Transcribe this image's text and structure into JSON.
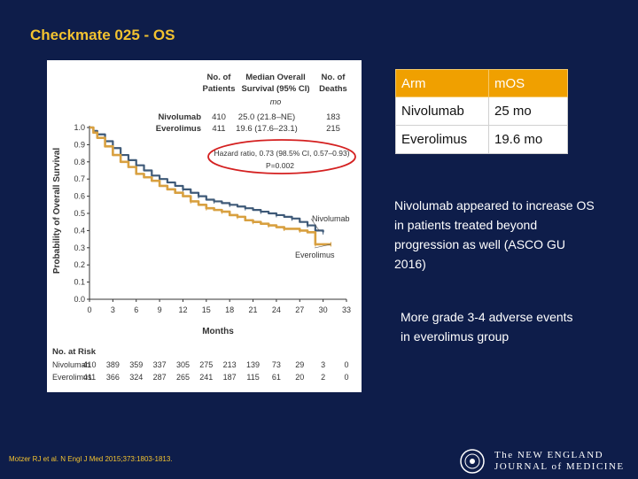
{
  "slide": {
    "title": "Checkmate 025 - OS",
    "citation": "Motzer RJ et al. N Engl J Med 2015;373:1803-1813.",
    "logo_text_line1": "The NEW ENGLAND",
    "logo_text_line2": "JOURNAL of MEDICINE"
  },
  "table": {
    "headers": [
      "Arm",
      "mOS"
    ],
    "rows": [
      [
        "Nivolumab",
        "25 mo"
      ],
      [
        "Everolimus",
        "19.6 mo"
      ]
    ]
  },
  "notes": [
    "Nivolumab appeared to increase OS in patients treated beyond progression as well (ASCO GU 2016)",
    "More grade 3-4 adverse events in everolimus group"
  ],
  "colors": {
    "background": "#0e1d4a",
    "title": "#f2c230",
    "table_header": "#f0a000",
    "nivolumab": "#3f5a78",
    "everolimus": "#d8a040",
    "hr_circle": "#d42020"
  },
  "chart_data": {
    "type": "line",
    "title": "",
    "xlabel": "Months",
    "ylabel": "Probability of Overall Survival",
    "xlim": [
      0,
      33
    ],
    "ylim": [
      0,
      1.0
    ],
    "x_ticks": [
      0,
      3,
      6,
      9,
      12,
      15,
      18,
      21,
      24,
      27,
      30,
      33
    ],
    "y_ticks": [
      "0.0",
      "0.1",
      "0.2",
      "0.3",
      "0.4",
      "0.5",
      "0.6",
      "0.7",
      "0.8",
      "0.9",
      "1.0"
    ],
    "header_cols": [
      [
        "No. of",
        "Patients"
      ],
      [
        "Median Overall",
        "Survival (95% CI)"
      ],
      [
        "No. of",
        "Deaths"
      ]
    ],
    "mo_label": "mo",
    "groups": [
      {
        "name": "Nivolumab",
        "patients": "410",
        "median": "25.0 (21.8–NE)",
        "deaths": "183"
      },
      {
        "name": "Everolimus",
        "patients": "411",
        "median": "19.6 (17.6–23.1)",
        "deaths": "215"
      }
    ],
    "hazard_ratio": "Hazard ratio, 0.73 (98.5% CI, 0.57–0.93)",
    "p_value": "P=0.002",
    "series": [
      {
        "name": "Nivolumab",
        "label": "Nivolumab",
        "x": [
          0,
          0.5,
          1,
          2,
          3,
          4,
          5,
          6,
          7,
          8,
          9,
          10,
          11,
          12,
          13,
          14,
          15,
          16,
          17,
          18,
          19,
          20,
          21,
          22,
          23,
          24,
          25,
          26,
          27,
          28,
          29,
          30
        ],
        "y": [
          1.0,
          0.98,
          0.96,
          0.92,
          0.88,
          0.84,
          0.81,
          0.78,
          0.75,
          0.72,
          0.7,
          0.68,
          0.66,
          0.64,
          0.62,
          0.6,
          0.58,
          0.57,
          0.56,
          0.55,
          0.54,
          0.53,
          0.52,
          0.51,
          0.5,
          0.49,
          0.48,
          0.47,
          0.45,
          0.43,
          0.4,
          0.39
        ]
      },
      {
        "name": "Everolimus",
        "label": "Everolimus",
        "x": [
          0,
          0.5,
          1,
          2,
          3,
          4,
          5,
          6,
          7,
          8,
          9,
          10,
          11,
          12,
          13,
          14,
          15,
          16,
          17,
          18,
          19,
          20,
          21,
          22,
          23,
          24,
          25,
          26,
          27,
          28,
          29,
          30,
          31
        ],
        "y": [
          1.0,
          0.97,
          0.94,
          0.89,
          0.84,
          0.8,
          0.77,
          0.73,
          0.71,
          0.69,
          0.66,
          0.64,
          0.62,
          0.6,
          0.57,
          0.55,
          0.53,
          0.52,
          0.51,
          0.49,
          0.48,
          0.46,
          0.45,
          0.44,
          0.43,
          0.42,
          0.41,
          0.41,
          0.4,
          0.39,
          0.32,
          0.32,
          0.32
        ]
      }
    ],
    "at_risk": {
      "title": "No. at Risk",
      "rows": [
        {
          "name": "Nivolumab",
          "values": [
            "410",
            "389",
            "359",
            "337",
            "305",
            "275",
            "213",
            "139",
            "73",
            "29",
            "3",
            "0"
          ]
        },
        {
          "name": "Everolimus",
          "values": [
            "411",
            "366",
            "324",
            "287",
            "265",
            "241",
            "187",
            "115",
            "61",
            "20",
            "2",
            "0"
          ]
        }
      ]
    }
  }
}
